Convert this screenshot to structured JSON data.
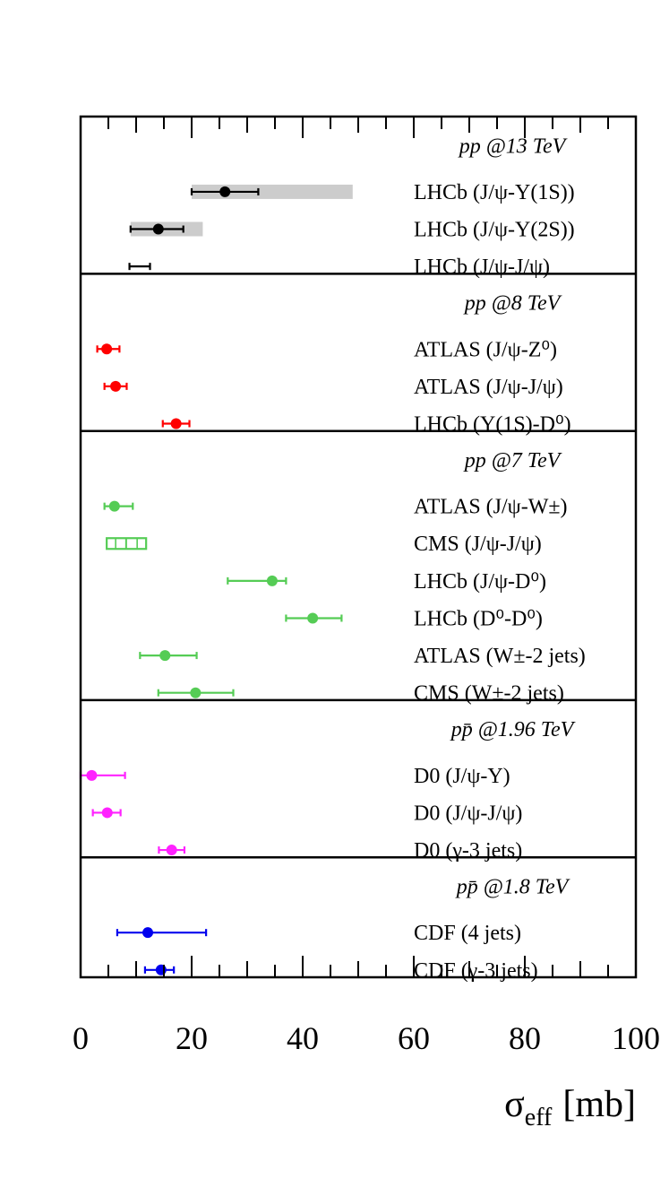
{
  "chart_data": {
    "type": "scatter",
    "title": "",
    "xlabel": "σ",
    "xlabel_sub": "eff",
    "xlabel_unit": "[mb]",
    "xlim": [
      0,
      100
    ],
    "x_ticks": [
      0,
      20,
      40,
      60,
      80,
      100
    ],
    "x_tick_labels": [
      "0",
      "20",
      "40",
      "60",
      "80",
      "100"
    ],
    "x_minor_step": 5,
    "grid": false,
    "groups": [
      {
        "header": "pp @13 TeV",
        "color": "#000000",
        "entries": [
          {
            "label": "LHCb (J/ψ-Υ(1S))",
            "value": 26,
            "err_low": 20,
            "err_high": 32,
            "band": [
              20,
              49
            ]
          },
          {
            "label": "LHCb (J/ψ-Υ(2S))",
            "value": 14,
            "err_low": 9,
            "err_high": 18.5,
            "band": [
              9,
              22
            ]
          },
          {
            "label": "LHCb (J/ψ-J/ψ)",
            "value": null,
            "err_low": 8.8,
            "err_high": 12.5
          }
        ]
      },
      {
        "header": "pp @8 TeV",
        "color": "#ff0000",
        "entries": [
          {
            "label": "ATLAS (J/ψ-Z⁰)",
            "value": 4.7,
            "err_low": 3,
            "err_high": 7
          },
          {
            "label": "ATLAS (J/ψ-J/ψ)",
            "value": 6.3,
            "err_low": 4.3,
            "err_high": 8.3
          },
          {
            "label": "LHCb (Υ(1S)-D⁰)",
            "value": 17.2,
            "err_low": 14.8,
            "err_high": 19.6
          }
        ]
      },
      {
        "header": "pp @7 TeV",
        "color": "#55cc55",
        "entries": [
          {
            "label": "ATLAS (J/ψ-W±)",
            "value": 6.1,
            "err_low": 4.3,
            "err_high": 9.4
          },
          {
            "label": "CMS (J/ψ-J/ψ)",
            "value": 8.2,
            "box": [
              4.7,
              11.8
            ]
          },
          {
            "label": "LHCb (J/ψ-D⁰)",
            "value": 34.5,
            "err_low": 26.5,
            "err_high": 37
          },
          {
            "label": "LHCb (D⁰-D⁰)",
            "value": 41.8,
            "err_low": 37,
            "err_high": 47
          },
          {
            "label": "ATLAS (W±-2 jets)",
            "value": 15.2,
            "err_low": 10.7,
            "err_high": 20.9
          },
          {
            "label": "CMS (W±-2 jets)",
            "value": 20.7,
            "err_low": 14,
            "err_high": 27.5
          }
        ]
      },
      {
        "header": "pp̄ @1.96 TeV",
        "color": "#ff22ff",
        "entries": [
          {
            "label": "D0 (J/ψ-Υ)",
            "value": 2,
            "err_low": 0,
            "err_high": 8
          },
          {
            "label": "D0 (J/ψ-J/ψ)",
            "value": 4.8,
            "err_low": 2.2,
            "err_high": 7.2
          },
          {
            "label": "D0 (γ-3 jets)",
            "value": 16.4,
            "err_low": 14.1,
            "err_high": 18.7
          }
        ]
      },
      {
        "header": "pp̄ @1.8 TeV",
        "color": "#0000ee",
        "entries": [
          {
            "label": "CDF (4 jets)",
            "value": 12.1,
            "err_low": 6.6,
            "err_high": 22.6
          },
          {
            "label": "CDF (γ-3 jets)",
            "value": 14.5,
            "err_low": 11.6,
            "err_high": 16.8
          }
        ]
      }
    ],
    "band_color": "#cccccc"
  }
}
